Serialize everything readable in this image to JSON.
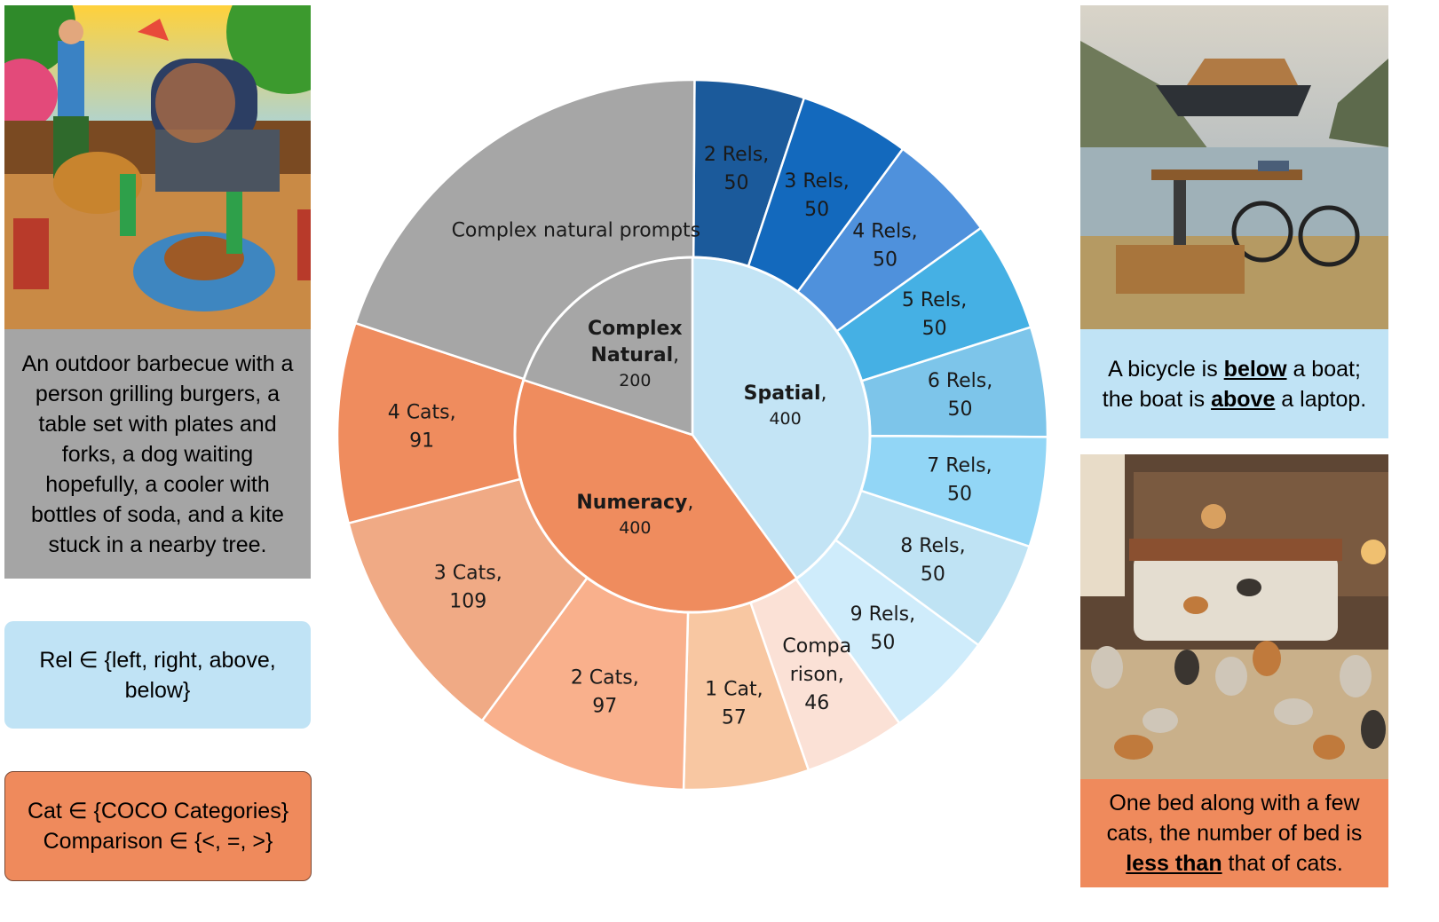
{
  "colors": {
    "gray_outer": "#a6a6a6",
    "gray_inner": "#a6a6a6",
    "orange_inner": "#ef8c5e",
    "blue_inner": "#c3e4f5"
  },
  "left_panel": {
    "image_caption": "An outdoor barbecue with a person grilling burgers, a table set with plates and forks, a dog waiting hopefully, a cooler with bottles of soda, and a kite stuck in a nearby tree.",
    "rel_box": "Rel ∈ {left, right, above, below}",
    "cat_box_line1": "Cat ∈ {COCO Categories}",
    "cat_box_line2": "Comparison ∈ {<, =, >}"
  },
  "right_panel": {
    "caption_top": {
      "t1": "A bicycle is ",
      "b1": "below",
      "t2": " a boat; the boat is ",
      "b2": "above",
      "t3": " a laptop."
    },
    "caption_bottom": {
      "t1": "One bed along with a few cats, the number of bed is ",
      "b1": "less than",
      "t2": " that of cats."
    }
  },
  "chart_data": {
    "type": "sunburst",
    "inner": [
      {
        "name": "Spatial",
        "value": 400,
        "color": "#c3e4f5"
      },
      {
        "name": "Numeracy",
        "value": 400,
        "color": "#ef8c5e"
      },
      {
        "name": "Complex Natural",
        "value": 200,
        "color": "#a6a6a6"
      }
    ],
    "outer": [
      {
        "label": "2 Rels,",
        "value": 50,
        "parent": "Spatial",
        "color": "#1b5a9b"
      },
      {
        "label": "3 Rels,",
        "value": 50,
        "parent": "Spatial",
        "color": "#1369bd"
      },
      {
        "label": "4 Rels,",
        "value": 50,
        "parent": "Spatial",
        "color": "#4f91dc"
      },
      {
        "label": "5 Rels,",
        "value": 50,
        "parent": "Spatial",
        "color": "#45b0e4"
      },
      {
        "label": "6 Rels,",
        "value": 50,
        "parent": "Spatial",
        "color": "#7dc5ea"
      },
      {
        "label": "7 Rels,",
        "value": 50,
        "parent": "Spatial",
        "color": "#92d6f6"
      },
      {
        "label": "8 Rels,",
        "value": 50,
        "parent": "Spatial",
        "color": "#bfe3f4"
      },
      {
        "label": "9 Rels,",
        "value": 50,
        "parent": "Spatial",
        "color": "#cfecfb"
      },
      {
        "label": "Compa rison,",
        "value": 46,
        "parent": "Numeracy",
        "color": "#fbe1d6"
      },
      {
        "label": "1 Cat,",
        "value": 57,
        "parent": "Numeracy",
        "color": "#f8c7a2"
      },
      {
        "label": "2 Cats,",
        "value": 97,
        "parent": "Numeracy",
        "color": "#f9b08c"
      },
      {
        "label": "3 Cats,",
        "value": 109,
        "parent": "Numeracy",
        "color": "#f0aa85"
      },
      {
        "label": "4 Cats,",
        "value": 91,
        "parent": "Numeracy",
        "color": "#ef8c5e"
      },
      {
        "label": "Complex natural prompts",
        "value": 200,
        "parent": "Complex Natural",
        "color": "#a6a6a6"
      }
    ]
  }
}
